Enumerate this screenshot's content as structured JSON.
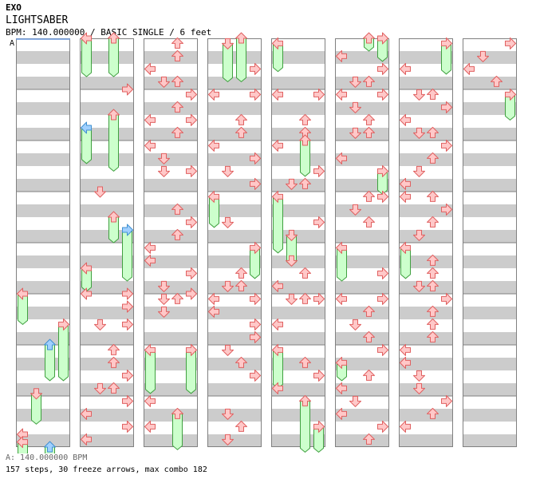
{
  "header": {
    "artist": "EXO",
    "title": "LIGHTSABER",
    "info": "BPM: 140.000000 / BASIC SINGLE / 6 feet",
    "bpm_marker": "A"
  },
  "footer": {
    "bpm_legend": "A: 140.000000 BPM",
    "stats": "157 steps, 30 freeze arrows, max combo 182"
  },
  "colors": {
    "arrow_red": "#ffc8c8",
    "arrow_red_stroke": "#e06060",
    "arrow_blue": "#a0d0ff",
    "arrow_blue_stroke": "#4090d0",
    "freeze": "#ccffcc",
    "freeze_stroke": "#40a040",
    "stripe": "#cccccc"
  },
  "chart_data": {
    "type": "table",
    "columns": 8,
    "measures_per_column": 8,
    "lanes": [
      "left",
      "down",
      "up",
      "right"
    ],
    "notes": [
      {
        "c": 0,
        "m": 7.75,
        "lane": "left",
        "color": "red"
      },
      {
        "c": 0,
        "m": 7.9,
        "lane": "left",
        "color": "red",
        "freeze_len": 0.3
      },
      {
        "c": 0,
        "m": 5.0,
        "lane": "left",
        "color": "red",
        "freeze_len": 0.6
      },
      {
        "c": 0,
        "m": 5.6,
        "lane": "right",
        "color": "red",
        "freeze_len": 1.1
      },
      {
        "c": 0,
        "m": 6.0,
        "lane": "up",
        "color": "blue",
        "freeze_len": 0.7
      },
      {
        "c": 0,
        "m": 6.95,
        "lane": "down",
        "color": "red",
        "freeze_len": 0.6
      },
      {
        "c": 0,
        "m": 8.0,
        "lane": "up",
        "color": "blue",
        "freeze_len": 0.3
      },
      {
        "c": 1,
        "m": 0.0,
        "lane": "left",
        "color": "red",
        "freeze_len": 0.75
      },
      {
        "c": 1,
        "m": 0.0,
        "lane": "up",
        "color": "red",
        "freeze_len": 0.75
      },
      {
        "c": 1,
        "m": 1.0,
        "lane": "right",
        "color": "red"
      },
      {
        "c": 1,
        "m": 1.75,
        "lane": "left",
        "color": "blue",
        "freeze_len": 0.7
      },
      {
        "c": 1,
        "m": 1.5,
        "lane": "up",
        "color": "red",
        "freeze_len": 1.1
      },
      {
        "c": 1,
        "m": 3.0,
        "lane": "down",
        "color": "red"
      },
      {
        "c": 1,
        "m": 3.5,
        "lane": "up",
        "color": "red",
        "freeze_len": 0.5
      },
      {
        "c": 1,
        "m": 3.75,
        "lane": "right",
        "color": "blue",
        "freeze_len": 1.0
      },
      {
        "c": 1,
        "m": 4.5,
        "lane": "left",
        "color": "red",
        "freeze_len": 0.45
      },
      {
        "c": 1,
        "m": 5.0,
        "lane": "left",
        "color": "red"
      },
      {
        "c": 1,
        "m": 5.0,
        "lane": "right",
        "color": "red"
      },
      {
        "c": 1,
        "m": 5.25,
        "lane": "right",
        "color": "red"
      },
      {
        "c": 1,
        "m": 5.6,
        "lane": "down",
        "color": "red"
      },
      {
        "c": 1,
        "m": 5.6,
        "lane": "right",
        "color": "red"
      },
      {
        "c": 1,
        "m": 6.1,
        "lane": "up",
        "color": "red"
      },
      {
        "c": 1,
        "m": 6.35,
        "lane": "up",
        "color": "red"
      },
      {
        "c": 1,
        "m": 6.6,
        "lane": "right",
        "color": "red"
      },
      {
        "c": 1,
        "m": 6.85,
        "lane": "down",
        "color": "red"
      },
      {
        "c": 1,
        "m": 6.85,
        "lane": "up",
        "color": "red"
      },
      {
        "c": 1,
        "m": 7.1,
        "lane": "right",
        "color": "red"
      },
      {
        "c": 1,
        "m": 7.35,
        "lane": "left",
        "color": "red"
      },
      {
        "c": 1,
        "m": 7.6,
        "lane": "right",
        "color": "red"
      },
      {
        "c": 1,
        "m": 7.85,
        "lane": "left",
        "color": "red"
      },
      {
        "c": 2,
        "m": 0.1,
        "lane": "up",
        "color": "red"
      },
      {
        "c": 2,
        "m": 0.35,
        "lane": "up",
        "color": "red"
      },
      {
        "c": 2,
        "m": 0.6,
        "lane": "left",
        "color": "red"
      },
      {
        "c": 2,
        "m": 0.85,
        "lane": "down",
        "color": "red"
      },
      {
        "c": 2,
        "m": 0.85,
        "lane": "up",
        "color": "red"
      },
      {
        "c": 2,
        "m": 1.1,
        "lane": "right",
        "color": "red"
      },
      {
        "c": 2,
        "m": 1.35,
        "lane": "up",
        "color": "red"
      },
      {
        "c": 2,
        "m": 1.6,
        "lane": "left",
        "color": "red"
      },
      {
        "c": 2,
        "m": 1.6,
        "lane": "right",
        "color": "red"
      },
      {
        "c": 2,
        "m": 1.85,
        "lane": "up",
        "color": "red"
      },
      {
        "c": 2,
        "m": 2.1,
        "lane": "left",
        "color": "red"
      },
      {
        "c": 2,
        "m": 2.35,
        "lane": "down",
        "color": "red"
      },
      {
        "c": 2,
        "m": 2.6,
        "lane": "down",
        "color": "red"
      },
      {
        "c": 2,
        "m": 2.6,
        "lane": "right",
        "color": "red"
      },
      {
        "c": 2,
        "m": 3.35,
        "lane": "up",
        "color": "red"
      },
      {
        "c": 2,
        "m": 3.6,
        "lane": "right",
        "color": "red"
      },
      {
        "c": 2,
        "m": 3.85,
        "lane": "up",
        "color": "red"
      },
      {
        "c": 2,
        "m": 4.1,
        "lane": "left",
        "color": "red"
      },
      {
        "c": 2,
        "m": 4.35,
        "lane": "left",
        "color": "red"
      },
      {
        "c": 2,
        "m": 4.6,
        "lane": "right",
        "color": "red"
      },
      {
        "c": 2,
        "m": 4.85,
        "lane": "down",
        "color": "red"
      },
      {
        "c": 2,
        "m": 5.1,
        "lane": "down",
        "color": "red"
      },
      {
        "c": 2,
        "m": 5.1,
        "lane": "up",
        "color": "red"
      },
      {
        "c": 2,
        "m": 5.0,
        "lane": "right",
        "color": "red"
      },
      {
        "c": 2,
        "m": 5.35,
        "lane": "down",
        "color": "red"
      },
      {
        "c": 2,
        "m": 6.1,
        "lane": "left",
        "color": "red",
        "freeze_len": 0.85
      },
      {
        "c": 2,
        "m": 6.1,
        "lane": "right",
        "color": "red",
        "freeze_len": 0.85
      },
      {
        "c": 2,
        "m": 7.1,
        "lane": "left",
        "color": "red"
      },
      {
        "c": 2,
        "m": 7.35,
        "lane": "up",
        "color": "red",
        "freeze_len": 0.7
      },
      {
        "c": 2,
        "m": 7.6,
        "lane": "left",
        "color": "red"
      },
      {
        "c": 3,
        "m": 0.1,
        "lane": "down",
        "color": "red",
        "freeze_len": 0.75
      },
      {
        "c": 3,
        "m": 0.0,
        "lane": "up",
        "color": "red",
        "freeze_len": 0.85
      },
      {
        "c": 3,
        "m": 0.6,
        "lane": "right",
        "color": "red"
      },
      {
        "c": 3,
        "m": 1.1,
        "lane": "left",
        "color": "red"
      },
      {
        "c": 3,
        "m": 1.1,
        "lane": "right",
        "color": "red"
      },
      {
        "c": 3,
        "m": 1.6,
        "lane": "up",
        "color": "red"
      },
      {
        "c": 3,
        "m": 1.85,
        "lane": "up",
        "color": "red"
      },
      {
        "c": 3,
        "m": 2.1,
        "lane": "left",
        "color": "red"
      },
      {
        "c": 3,
        "m": 2.35,
        "lane": "right",
        "color": "red"
      },
      {
        "c": 3,
        "m": 2.6,
        "lane": "down",
        "color": "red"
      },
      {
        "c": 3,
        "m": 2.85,
        "lane": "right",
        "color": "red"
      },
      {
        "c": 3,
        "m": 3.1,
        "lane": "left",
        "color": "red",
        "freeze_len": 0.6
      },
      {
        "c": 3,
        "m": 3.6,
        "lane": "down",
        "color": "red"
      },
      {
        "c": 3,
        "m": 4.1,
        "lane": "right",
        "color": "red",
        "freeze_len": 0.6
      },
      {
        "c": 3,
        "m": 4.6,
        "lane": "up",
        "color": "red"
      },
      {
        "c": 3,
        "m": 4.85,
        "lane": "down",
        "color": "red"
      },
      {
        "c": 3,
        "m": 4.85,
        "lane": "up",
        "color": "red"
      },
      {
        "c": 3,
        "m": 5.1,
        "lane": "left",
        "color": "red"
      },
      {
        "c": 3,
        "m": 5.1,
        "lane": "right",
        "color": "red"
      },
      {
        "c": 3,
        "m": 5.35,
        "lane": "left",
        "color": "red"
      },
      {
        "c": 3,
        "m": 5.6,
        "lane": "right",
        "color": "red"
      },
      {
        "c": 3,
        "m": 5.85,
        "lane": "right",
        "color": "red"
      },
      {
        "c": 3,
        "m": 6.1,
        "lane": "down",
        "color": "red"
      },
      {
        "c": 3,
        "m": 6.35,
        "lane": "up",
        "color": "red"
      },
      {
        "c": 3,
        "m": 6.6,
        "lane": "right",
        "color": "red"
      },
      {
        "c": 3,
        "m": 7.35,
        "lane": "down",
        "color": "red"
      },
      {
        "c": 3,
        "m": 7.6,
        "lane": "up",
        "color": "red"
      },
      {
        "c": 3,
        "m": 7.85,
        "lane": "down",
        "color": "red"
      },
      {
        "c": 4,
        "m": 0.1,
        "lane": "left",
        "color": "red",
        "freeze_len": 0.55
      },
      {
        "c": 4,
        "m": 1.1,
        "lane": "left",
        "color": "red"
      },
      {
        "c": 4,
        "m": 1.1,
        "lane": "right",
        "color": "red"
      },
      {
        "c": 4,
        "m": 1.6,
        "lane": "up",
        "color": "red"
      },
      {
        "c": 4,
        "m": 1.85,
        "lane": "up",
        "color": "red"
      },
      {
        "c": 4,
        "m": 2.1,
        "lane": "left",
        "color": "red"
      },
      {
        "c": 4,
        "m": 2.0,
        "lane": "up",
        "color": "red",
        "freeze_len": 0.7
      },
      {
        "c": 4,
        "m": 2.6,
        "lane": "right",
        "color": "red"
      },
      {
        "c": 4,
        "m": 2.85,
        "lane": "down",
        "color": "red"
      },
      {
        "c": 4,
        "m": 2.85,
        "lane": "up",
        "color": "red"
      },
      {
        "c": 4,
        "m": 3.1,
        "lane": "left",
        "color": "red",
        "freeze_len": 1.1
      },
      {
        "c": 4,
        "m": 3.6,
        "lane": "right",
        "color": "red"
      },
      {
        "c": 4,
        "m": 3.85,
        "lane": "down",
        "color": "red",
        "freeze_len": 0.6
      },
      {
        "c": 4,
        "m": 4.35,
        "lane": "down",
        "color": "red"
      },
      {
        "c": 4,
        "m": 4.6,
        "lane": "up",
        "color": "red"
      },
      {
        "c": 4,
        "m": 4.85,
        "lane": "left",
        "color": "red"
      },
      {
        "c": 4,
        "m": 5.1,
        "lane": "down",
        "color": "red"
      },
      {
        "c": 4,
        "m": 5.1,
        "lane": "right",
        "color": "red"
      },
      {
        "c": 4,
        "m": 5.1,
        "lane": "up",
        "color": "red"
      },
      {
        "c": 4,
        "m": 5.6,
        "lane": "left",
        "color": "red"
      },
      {
        "c": 4,
        "m": 6.1,
        "lane": "left",
        "color": "red",
        "freeze_len": 0.75
      },
      {
        "c": 4,
        "m": 6.35,
        "lane": "up",
        "color": "red"
      },
      {
        "c": 4,
        "m": 6.6,
        "lane": "right",
        "color": "red"
      },
      {
        "c": 4,
        "m": 6.85,
        "lane": "left",
        "color": "red"
      },
      {
        "c": 4,
        "m": 7.1,
        "lane": "up",
        "color": "red",
        "freeze_len": 1.0
      },
      {
        "c": 4,
        "m": 7.6,
        "lane": "right",
        "color": "red",
        "freeze_len": 0.5
      },
      {
        "c": 5,
        "m": 0.0,
        "lane": "up",
        "color": "red",
        "freeze_len": 0.25
      },
      {
        "c": 5,
        "m": 0.0,
        "lane": "right",
        "color": "red",
        "freeze_len": 0.45
      },
      {
        "c": 5,
        "m": 0.35,
        "lane": "left",
        "color": "red"
      },
      {
        "c": 5,
        "m": 0.6,
        "lane": "right",
        "color": "red"
      },
      {
        "c": 5,
        "m": 0.85,
        "lane": "down",
        "color": "red"
      },
      {
        "c": 5,
        "m": 0.85,
        "lane": "up",
        "color": "red"
      },
      {
        "c": 5,
        "m": 1.1,
        "lane": "left",
        "color": "red"
      },
      {
        "c": 5,
        "m": 1.1,
        "lane": "right",
        "color": "red"
      },
      {
        "c": 5,
        "m": 1.35,
        "lane": "down",
        "color": "red"
      },
      {
        "c": 5,
        "m": 1.6,
        "lane": "up",
        "color": "red"
      },
      {
        "c": 5,
        "m": 1.85,
        "lane": "down",
        "color": "red"
      },
      {
        "c": 5,
        "m": 1.85,
        "lane": "up",
        "color": "red"
      },
      {
        "c": 5,
        "m": 2.35,
        "lane": "left",
        "color": "red"
      },
      {
        "c": 5,
        "m": 2.6,
        "lane": "right",
        "color": "red",
        "freeze_len": 0.45
      },
      {
        "c": 5,
        "m": 3.1,
        "lane": "up",
        "color": "red"
      },
      {
        "c": 5,
        "m": 3.1,
        "lane": "right",
        "color": "red"
      },
      {
        "c": 5,
        "m": 3.35,
        "lane": "down",
        "color": "red"
      },
      {
        "c": 5,
        "m": 3.6,
        "lane": "up",
        "color": "red"
      },
      {
        "c": 5,
        "m": 4.1,
        "lane": "left",
        "color": "red",
        "freeze_len": 0.65
      },
      {
        "c": 5,
        "m": 4.6,
        "lane": "right",
        "color": "red"
      },
      {
        "c": 5,
        "m": 5.1,
        "lane": "left",
        "color": "red"
      },
      {
        "c": 5,
        "m": 5.1,
        "lane": "right",
        "color": "red"
      },
      {
        "c": 5,
        "m": 5.35,
        "lane": "up",
        "color": "red"
      },
      {
        "c": 5,
        "m": 5.6,
        "lane": "down",
        "color": "red"
      },
      {
        "c": 5,
        "m": 5.85,
        "lane": "up",
        "color": "red"
      },
      {
        "c": 5,
        "m": 6.1,
        "lane": "right",
        "color": "red"
      },
      {
        "c": 5,
        "m": 6.35,
        "lane": "left",
        "color": "red",
        "freeze_len": 0.35
      },
      {
        "c": 5,
        "m": 6.6,
        "lane": "up",
        "color": "red"
      },
      {
        "c": 5,
        "m": 6.85,
        "lane": "left",
        "color": "red"
      },
      {
        "c": 5,
        "m": 7.1,
        "lane": "down",
        "color": "red"
      },
      {
        "c": 5,
        "m": 7.35,
        "lane": "left",
        "color": "red"
      },
      {
        "c": 5,
        "m": 7.6,
        "lane": "right",
        "color": "red"
      },
      {
        "c": 5,
        "m": 7.85,
        "lane": "up",
        "color": "red"
      },
      {
        "c": 6,
        "m": 0.1,
        "lane": "right",
        "color": "red",
        "freeze_len": 0.6
      },
      {
        "c": 6,
        "m": 0.6,
        "lane": "left",
        "color": "red"
      },
      {
        "c": 6,
        "m": 1.1,
        "lane": "down",
        "color": "red"
      },
      {
        "c": 6,
        "m": 1.1,
        "lane": "up",
        "color": "red"
      },
      {
        "c": 6,
        "m": 1.35,
        "lane": "right",
        "color": "red"
      },
      {
        "c": 6,
        "m": 1.6,
        "lane": "left",
        "color": "red"
      },
      {
        "c": 6,
        "m": 1.85,
        "lane": "down",
        "color": "red"
      },
      {
        "c": 6,
        "m": 1.85,
        "lane": "up",
        "color": "red"
      },
      {
        "c": 6,
        "m": 2.1,
        "lane": "right",
        "color": "red"
      },
      {
        "c": 6,
        "m": 2.35,
        "lane": "up",
        "color": "red"
      },
      {
        "c": 6,
        "m": 2.6,
        "lane": "down",
        "color": "red"
      },
      {
        "c": 6,
        "m": 2.85,
        "lane": "left",
        "color": "red"
      },
      {
        "c": 6,
        "m": 3.1,
        "lane": "left",
        "color": "red"
      },
      {
        "c": 6,
        "m": 3.1,
        "lane": "up",
        "color": "red"
      },
      {
        "c": 6,
        "m": 3.35,
        "lane": "right",
        "color": "red"
      },
      {
        "c": 6,
        "m": 3.6,
        "lane": "up",
        "color": "red"
      },
      {
        "c": 6,
        "m": 3.85,
        "lane": "down",
        "color": "red"
      },
      {
        "c": 6,
        "m": 4.1,
        "lane": "left",
        "color": "red",
        "freeze_len": 0.6
      },
      {
        "c": 6,
        "m": 4.35,
        "lane": "up",
        "color": "red"
      },
      {
        "c": 6,
        "m": 4.6,
        "lane": "up",
        "color": "red"
      },
      {
        "c": 6,
        "m": 4.85,
        "lane": "down",
        "color": "red"
      },
      {
        "c": 6,
        "m": 4.85,
        "lane": "up",
        "color": "red"
      },
      {
        "c": 6,
        "m": 5.1,
        "lane": "right",
        "color": "red"
      },
      {
        "c": 6,
        "m": 5.35,
        "lane": "up",
        "color": "red"
      },
      {
        "c": 6,
        "m": 5.6,
        "lane": "up",
        "color": "red"
      },
      {
        "c": 6,
        "m": 5.85,
        "lane": "up",
        "color": "red"
      },
      {
        "c": 6,
        "m": 6.1,
        "lane": "left",
        "color": "red"
      },
      {
        "c": 6,
        "m": 6.35,
        "lane": "left",
        "color": "red"
      },
      {
        "c": 6,
        "m": 6.6,
        "lane": "down",
        "color": "red"
      },
      {
        "c": 6,
        "m": 6.85,
        "lane": "down",
        "color": "red"
      },
      {
        "c": 6,
        "m": 7.1,
        "lane": "right",
        "color": "red"
      },
      {
        "c": 6,
        "m": 7.35,
        "lane": "up",
        "color": "red"
      },
      {
        "c": 6,
        "m": 7.6,
        "lane": "left",
        "color": "red"
      },
      {
        "c": 7,
        "m": 0.1,
        "lane": "right",
        "color": "red"
      },
      {
        "c": 7,
        "m": 0.35,
        "lane": "down",
        "color": "red"
      },
      {
        "c": 7,
        "m": 0.6,
        "lane": "left",
        "color": "red"
      },
      {
        "c": 7,
        "m": 0.85,
        "lane": "up",
        "color": "red"
      },
      {
        "c": 7,
        "m": 1.1,
        "lane": "right",
        "color": "red",
        "freeze_len": 0.5
      }
    ]
  }
}
